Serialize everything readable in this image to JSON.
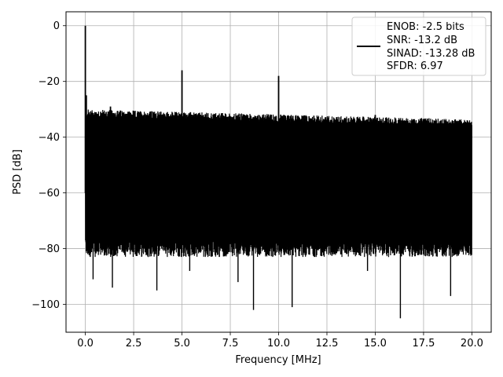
{
  "chart_data": {
    "type": "line",
    "title": "",
    "xlabel": "Frequency [MHz]",
    "ylabel": "PSD [dB]",
    "xlim": [
      -1.0,
      21.0
    ],
    "ylim": [
      -110,
      5
    ],
    "x_ticks": [
      0.0,
      2.5,
      5.0,
      7.5,
      10.0,
      12.5,
      15.0,
      17.5,
      20.0
    ],
    "x_tick_labels": [
      "0.0",
      "2.5",
      "5.0",
      "7.5",
      "10.0",
      "12.5",
      "15.0",
      "17.5",
      "20.0"
    ],
    "y_ticks": [
      0,
      -20,
      -40,
      -60,
      -80,
      -100
    ],
    "y_tick_labels": [
      "0",
      "−20",
      "−40",
      "−60",
      "−80",
      "−100"
    ],
    "grid": true,
    "legend_position": "top-right",
    "series_color": "#000000",
    "legend_lines": [
      "ENOB: -2.5 bits",
      "SNR: -13.2 dB",
      "SINAD: -13.28 dB",
      "SFDR: 6.97"
    ],
    "noise_floor": {
      "x_range": [
        0.0,
        20.0
      ],
      "upper_db_start": -31,
      "upper_db_end": -37,
      "lower_db_typical": -80,
      "envelope_top_db": -33,
      "envelope_bottom_db": -78
    },
    "peaks": [
      {
        "x": 0.0,
        "y": 0
      },
      {
        "x": 0.05,
        "y": -25
      },
      {
        "x": 1.3,
        "y": -29
      },
      {
        "x": 5.0,
        "y": -16
      },
      {
        "x": 10.0,
        "y": -18
      },
      {
        "x": 15.0,
        "y": -32
      }
    ],
    "dips": [
      {
        "x": 0.4,
        "y": -91
      },
      {
        "x": 1.4,
        "y": -94
      },
      {
        "x": 3.7,
        "y": -95
      },
      {
        "x": 5.4,
        "y": -88
      },
      {
        "x": 7.9,
        "y": -92
      },
      {
        "x": 8.7,
        "y": -102
      },
      {
        "x": 10.7,
        "y": -101
      },
      {
        "x": 14.6,
        "y": -88
      },
      {
        "x": 16.3,
        "y": -105
      },
      {
        "x": 18.9,
        "y": -97
      }
    ]
  }
}
